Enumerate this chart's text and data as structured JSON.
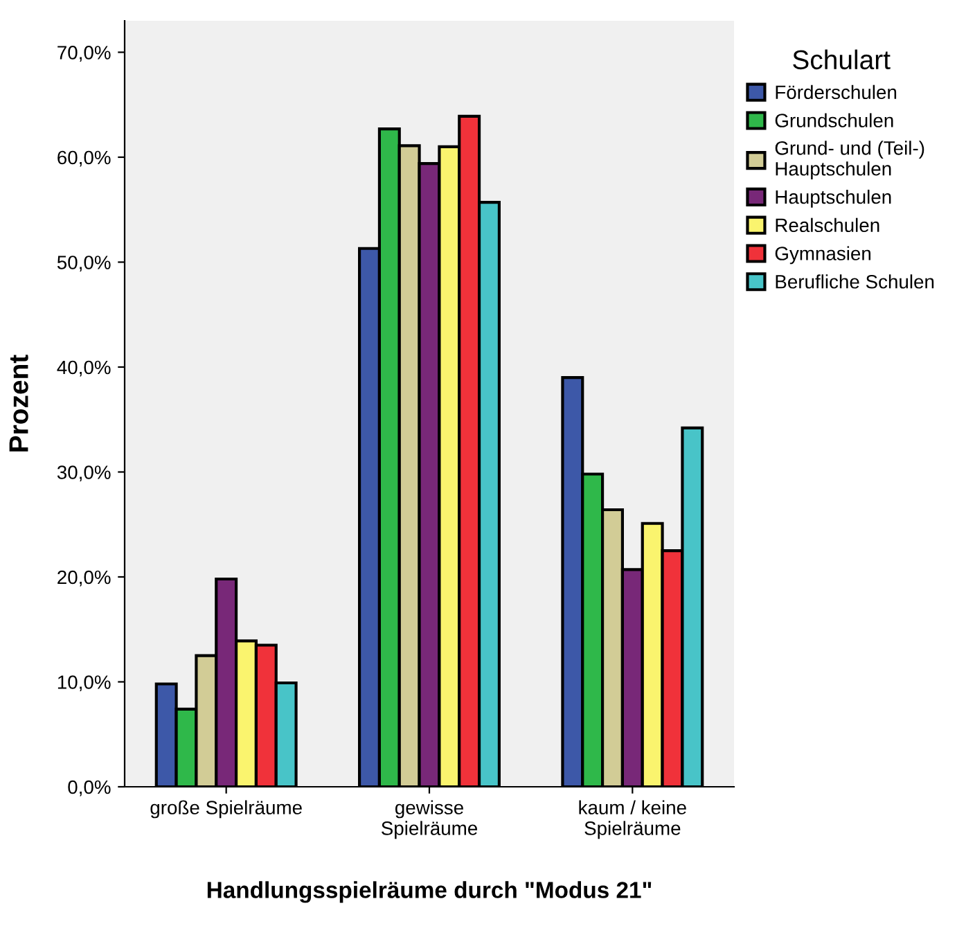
{
  "chart_data": {
    "type": "bar",
    "xlabel": "Handlungsspielräume durch \"Modus 21\"",
    "ylabel": "Prozent",
    "legend_title": "Schulart",
    "categories": [
      "große Spielräume",
      "gewisse\nSpielräume",
      "kaum / keine\nSpielräume"
    ],
    "series": [
      {
        "name": "Förderschulen",
        "color": "#3d58a8",
        "values": [
          9.8,
          51.3,
          39.0
        ]
      },
      {
        "name": "Grundschulen",
        "color": "#2fb84a",
        "values": [
          7.4,
          62.7,
          29.8
        ]
      },
      {
        "name": "Grund- und (Teil-)\nHauptschulen",
        "color": "#d2cc96",
        "values": [
          12.5,
          61.1,
          26.4
        ]
      },
      {
        "name": "Hauptschulen",
        "color": "#782878",
        "values": [
          19.8,
          59.4,
          20.7
        ]
      },
      {
        "name": "Realschulen",
        "color": "#faf46e",
        "values": [
          13.9,
          61.0,
          25.1
        ]
      },
      {
        "name": "Gymnasien",
        "color": "#f0323a",
        "values": [
          13.5,
          63.9,
          22.5
        ]
      },
      {
        "name": "Berufliche Schulen",
        "color": "#48c4c8",
        "values": [
          9.9,
          55.7,
          34.2
        ]
      }
    ],
    "ylim": [
      0,
      73
    ],
    "yticks": [
      {
        "value": 0,
        "label": "0,0%"
      },
      {
        "value": 10,
        "label": "10,0%"
      },
      {
        "value": 20,
        "label": "20,0%"
      },
      {
        "value": 30,
        "label": "30,0%"
      },
      {
        "value": 40,
        "label": "40,0%"
      },
      {
        "value": 50,
        "label": "50,0%"
      },
      {
        "value": 60,
        "label": "60,0%"
      },
      {
        "value": 70,
        "label": "70,0%"
      }
    ],
    "grid": false,
    "legend": "right"
  }
}
